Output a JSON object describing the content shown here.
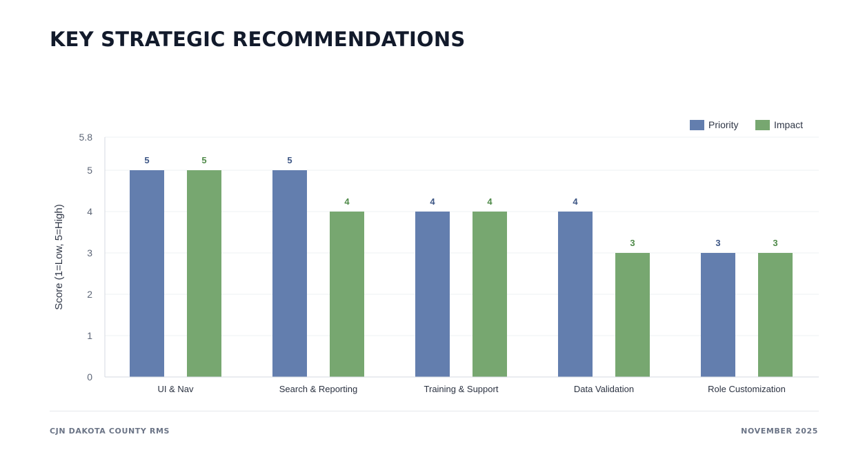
{
  "slide": {
    "title": "KEY STRATEGIC RECOMMENDATIONS",
    "footer_left": "CJN DAKOTA COUNTY RMS",
    "footer_right": "NOVEMBER 2025"
  },
  "colors": {
    "priority": "#637eae",
    "impact": "#77a770",
    "priority_label": "#3d5685",
    "impact_label": "#4f8a49"
  },
  "chart_data": {
    "type": "bar",
    "title": "",
    "xlabel": "",
    "ylabel": "Score (1=Low, 5=High)",
    "categories": [
      "UI & Nav",
      "Search & Reporting",
      "Training & Support",
      "Data Validation",
      "Role Customization"
    ],
    "series": [
      {
        "name": "Priority",
        "values": [
          5,
          5,
          4,
          4,
          3
        ]
      },
      {
        "name": "Impact",
        "values": [
          5,
          4,
          4,
          3,
          3
        ]
      }
    ],
    "yticks": [
      "0",
      "1",
      "2",
      "3",
      "4",
      "5",
      "5.8"
    ],
    "ylim": [
      0,
      5.8
    ],
    "grid": true,
    "legend": "top-right",
    "data_labels": true
  }
}
